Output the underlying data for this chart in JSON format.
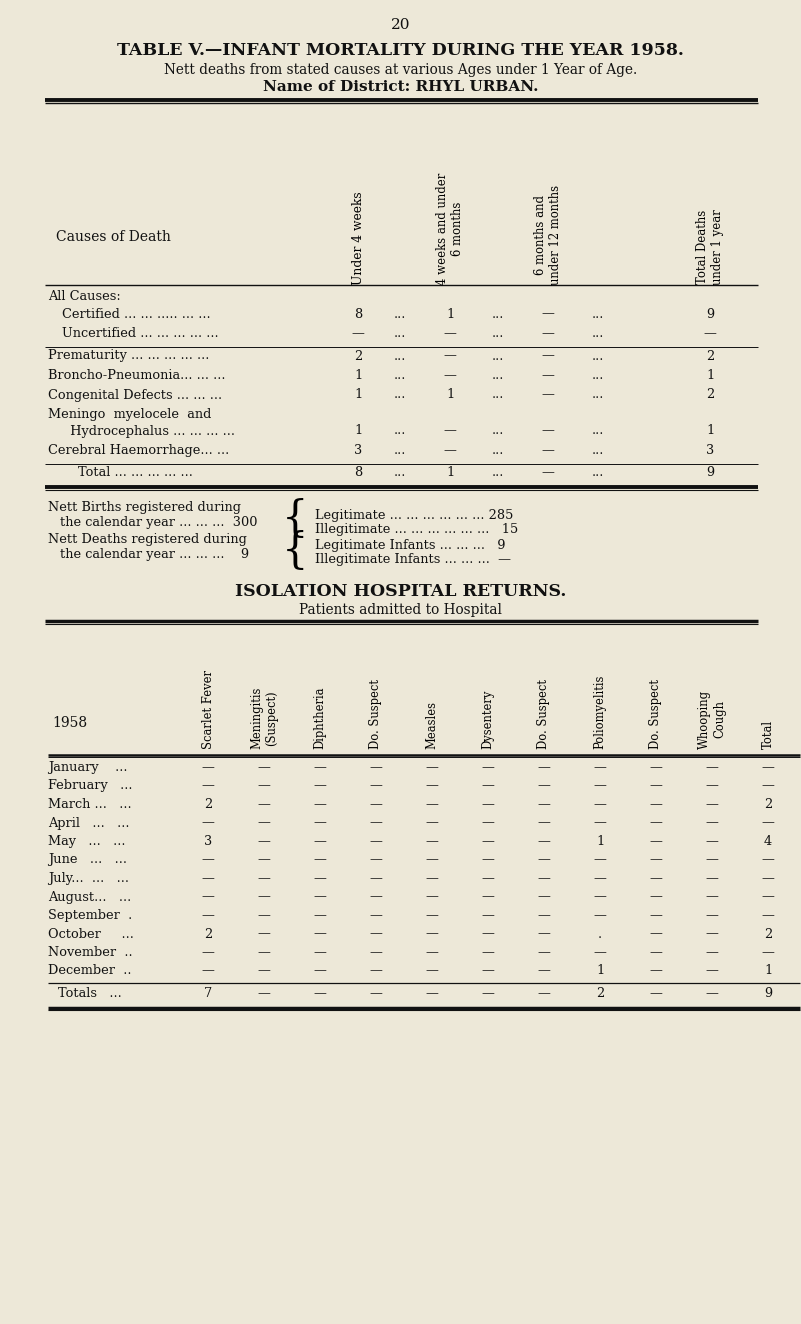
{
  "page_number": "20",
  "bg_color": "#ede8d8",
  "title1": "TABLE V.—INFANT MORTALITY DURING THE YEAR 1958.",
  "title2": "Nett deaths from stated causes at various Ages under 1 Year of Age.",
  "title3": "Name of District: RHYL URBAN.",
  "t1_col_headers": [
    "Under 4 weeks",
    "4 weeks and under\n6 months",
    "6 months and\nunder 12 months",
    "Total Deaths\nunder 1 year"
  ],
  "causes_label": "Causes of Death",
  "row_all_causes": "All Causes:",
  "row_certified": "Certified ... ... ..... ... ...",
  "row_uncertified": "Uncertified ... ... ... ... ...",
  "row_prematurity": "Prematurity ... ... ... ... ...",
  "row_broncho": "Broncho-Pneumonia... ... ...",
  "row_congenital": "Congenital Defects ... ... ...",
  "row_meningo_1": "Meningo  myelocele  and",
  "row_meningo_2": "  Hydrocephalus ... ... ... ...",
  "row_cerebral": "Cerebral Haemorrhage... ...",
  "row_total": "Total ... ... ... ... ...",
  "certified_vals": [
    "8",
    "...",
    "1",
    "...",
    "—",
    "...",
    "9"
  ],
  "uncertified_vals": [
    "—",
    "...",
    "—",
    "...",
    "—",
    "...",
    "—"
  ],
  "prematurity_vals": [
    "2",
    "...",
    "—",
    "...",
    "—",
    "...",
    "2"
  ],
  "broncho_vals": [
    "1",
    "...",
    "—",
    "...",
    "—",
    "...",
    "1"
  ],
  "congenital_vals": [
    "1",
    "...",
    "1",
    "...",
    "—",
    "...",
    "2"
  ],
  "meningo_vals": [
    "1",
    "...",
    "—",
    "...",
    "—",
    "...",
    "1"
  ],
  "cerebral_vals": [
    "3",
    "...",
    "—",
    "...",
    "—",
    "...",
    "3"
  ],
  "total_vals": [
    "8",
    "...",
    "1",
    "...",
    "—",
    "...",
    "9"
  ],
  "nett_births_1": "Nett Births registered during",
  "nett_births_2": "the calendar year ... ... ...  300",
  "nett_deaths_1": "Nett Deaths registered during",
  "nett_deaths_2": "the calendar year ... ... ...    9",
  "legitimate": "Legitimate ... ... ... ... ... ... 285",
  "illegitimate": "Illegitimate ... ... ... ... ... ...   15",
  "leg_infants": "Legitimate Infants ... ... ...   9",
  "illeg_infants": "Illegitimate Infants ... ... ...  —",
  "iso_title": "ISOLATION HOSPITAL RETURNS.",
  "iso_subtitle": "Patients admitted to Hospital",
  "iso_col_headers": [
    "Scarlet Fever",
    "Meningitis\n(Suspect)",
    "Diphtheria",
    "Do. Suspect",
    "Measles",
    "Dysentery",
    "Do. Suspect",
    "Poliomyelitis",
    "Do. Suspect",
    "Whooping\nCough",
    "Total"
  ],
  "iso_year_label": "1958",
  "iso_months": [
    "January    ...",
    "February   ...",
    "March ...   ...",
    "April   ...   ...",
    "May   ...   ...",
    "June   ...   ...",
    "July...  ...   ...",
    "August...   ...",
    "September  .",
    "October     ...",
    "November  ..",
    "December  .."
  ],
  "iso_data": [
    [
      "—",
      "—",
      "—",
      "—",
      "—",
      "—",
      "—",
      "—",
      "—",
      "—",
      "—"
    ],
    [
      "—",
      "—",
      "—",
      "—",
      "—",
      "—",
      "—",
      "—",
      "—",
      "—",
      "—"
    ],
    [
      "2",
      "—",
      "—",
      "—",
      "—",
      "—",
      "—",
      "—",
      "—",
      "—",
      "2"
    ],
    [
      "—",
      "—",
      "—",
      "—",
      "—",
      "—",
      "—",
      "—",
      "—",
      "—",
      "—"
    ],
    [
      "3",
      "—",
      "—",
      "—",
      "—",
      "—",
      "—",
      "1",
      "—",
      "—",
      "4"
    ],
    [
      "—",
      "—",
      "—",
      "—",
      "—",
      "—",
      "—",
      "—",
      "—",
      "—",
      "—"
    ],
    [
      "—",
      "—",
      "—",
      "—",
      "—",
      "—",
      "—",
      "—",
      "—",
      "—",
      "—"
    ],
    [
      "—",
      "—",
      "—",
      "—",
      "—",
      "—",
      "—",
      "—",
      "—",
      "—",
      "—"
    ],
    [
      "—",
      "—",
      "—",
      "—",
      "—",
      "—",
      "—",
      "—",
      "—",
      "—",
      "—"
    ],
    [
      "2",
      "—",
      "—",
      "—",
      "—",
      "—",
      "—",
      ".",
      "—",
      "—",
      "2"
    ],
    [
      "—",
      "—",
      "—",
      "—",
      "—",
      "—",
      "—",
      "—",
      "—",
      "—",
      "—"
    ],
    [
      "—",
      "—",
      "—",
      "—",
      "—",
      "—",
      "—",
      "1",
      "—",
      "—",
      "1"
    ]
  ],
  "iso_totals": [
    "7",
    "—",
    "—",
    "—",
    "—",
    "—",
    "—",
    "2",
    "—",
    "—",
    "9"
  ]
}
